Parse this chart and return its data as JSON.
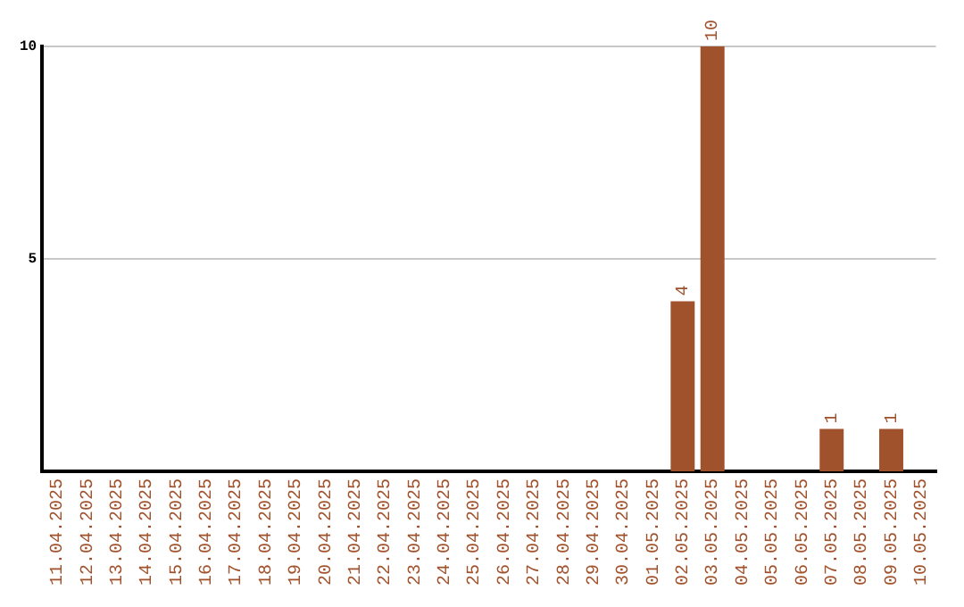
{
  "chart_data": {
    "type": "bar",
    "categories": [
      "11.04.2025",
      "12.04.2025",
      "13.04.2025",
      "14.04.2025",
      "15.04.2025",
      "16.04.2025",
      "17.04.2025",
      "18.04.2025",
      "19.04.2025",
      "20.04.2025",
      "21.04.2025",
      "22.04.2025",
      "23.04.2025",
      "24.04.2025",
      "25.04.2025",
      "26.04.2025",
      "27.04.2025",
      "28.04.2025",
      "29.04.2025",
      "30.04.2025",
      "01.05.2025",
      "02.05.2025",
      "03.05.2025",
      "04.05.2025",
      "05.05.2025",
      "06.05.2025",
      "07.05.2025",
      "08.05.2025",
      "09.05.2025",
      "10.05.2025"
    ],
    "values": [
      0,
      0,
      0,
      0,
      0,
      0,
      0,
      0,
      0,
      0,
      0,
      0,
      0,
      0,
      0,
      0,
      0,
      0,
      0,
      0,
      0,
      4,
      10,
      0,
      0,
      0,
      1,
      0,
      1,
      0
    ],
    "value_labels": [
      null,
      null,
      null,
      null,
      null,
      null,
      null,
      null,
      null,
      null,
      null,
      null,
      null,
      null,
      null,
      null,
      null,
      null,
      null,
      null,
      null,
      "4",
      "10",
      null,
      null,
      null,
      "1",
      null,
      "1",
      null
    ],
    "color": "#a0522d",
    "ylim": [
      0,
      10
    ],
    "yticks": [
      5,
      10
    ],
    "grid": "y"
  }
}
